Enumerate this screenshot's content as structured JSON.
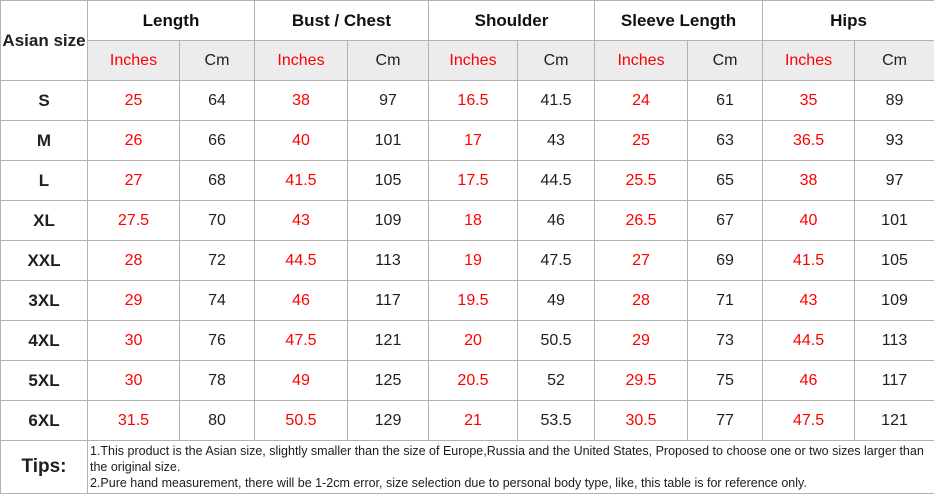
{
  "chart_data": {
    "type": "table",
    "corner_header": "Asian size",
    "column_groups": [
      "Length",
      "Bust / Chest",
      "Shoulder",
      "Sleeve Length",
      "Hips"
    ],
    "sub_columns": [
      "Inches",
      "Cm"
    ],
    "columns": [
      "Asian size",
      "Length Inches",
      "Length Cm",
      "Bust/Chest Inches",
      "Bust/Chest Cm",
      "Shoulder Inches",
      "Shoulder Cm",
      "Sleeve Length Inches",
      "Sleeve Length Cm",
      "Hips Inches",
      "Hips Cm"
    ],
    "rows": [
      {
        "size": "S",
        "values": [
          25,
          64,
          38,
          97,
          16.5,
          41.5,
          24,
          61,
          35,
          89
        ]
      },
      {
        "size": "M",
        "values": [
          26,
          66,
          40,
          101,
          17,
          43,
          25,
          63,
          36.5,
          93
        ]
      },
      {
        "size": "L",
        "values": [
          27,
          68,
          41.5,
          105,
          17.5,
          44.5,
          25.5,
          65,
          38,
          97
        ]
      },
      {
        "size": "XL",
        "values": [
          27.5,
          70,
          43,
          109,
          18,
          46,
          26.5,
          67,
          40,
          101
        ]
      },
      {
        "size": "XXL",
        "values": [
          28,
          72,
          44.5,
          113,
          19,
          47.5,
          27,
          69,
          41.5,
          105
        ]
      },
      {
        "size": "3XL",
        "values": [
          29,
          74,
          46,
          117,
          19.5,
          49,
          28,
          71,
          43,
          109
        ]
      },
      {
        "size": "4XL",
        "values": [
          30,
          76,
          47.5,
          121,
          20,
          50.5,
          29,
          73,
          44.5,
          113
        ]
      },
      {
        "size": "5XL",
        "values": [
          30,
          78,
          49,
          125,
          20.5,
          52,
          29.5,
          75,
          46,
          117
        ]
      },
      {
        "size": "6XL",
        "values": [
          31.5,
          80,
          50.5,
          129,
          21,
          53.5,
          30.5,
          77,
          47.5,
          121
        ]
      }
    ],
    "tips": {
      "label": "Tips:",
      "lines": [
        "1.This product is the Asian size, slightly smaller than the size of Europe,Russia and the United States, Proposed to choose one or two sizes larger than the original size.",
        "2.Pure hand measurement, there will be 1-2cm error, size selection due to personal body type, like, this table is for reference only."
      ]
    }
  },
  "labels": {
    "inches": "Inches",
    "cm": "Cm"
  },
  "colors": {
    "accent_red": "#ff0000",
    "text_dark": "#1f1f1f",
    "subheader_bg": "#ececec",
    "border": "#b2b2b2"
  }
}
